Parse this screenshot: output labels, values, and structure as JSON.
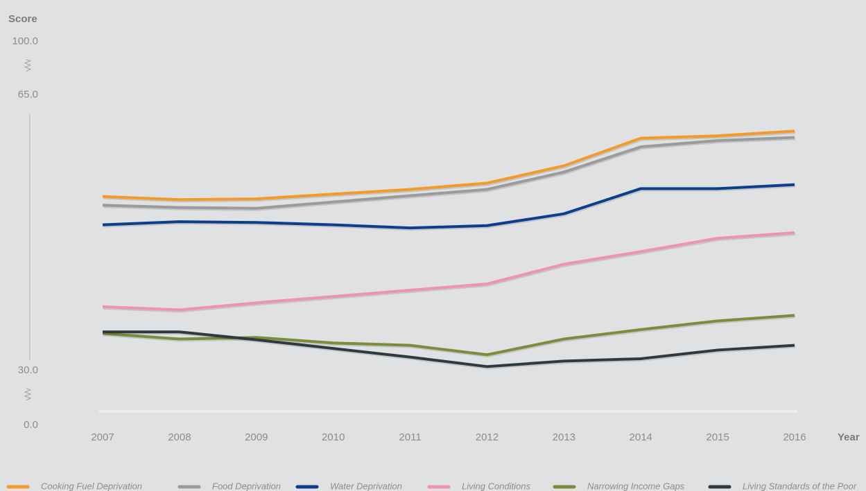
{
  "chart_data": {
    "type": "line",
    "y_label": "Score",
    "x_label": "Year",
    "categories": [
      "2007",
      "2008",
      "2009",
      "2010",
      "2011",
      "2012",
      "2013",
      "2014",
      "2015",
      "2016"
    ],
    "ylim": [
      0,
      100
    ],
    "yticks": [
      {
        "value": 100,
        "label": "100.0"
      },
      {
        "value": 65,
        "label": "65.0"
      },
      {
        "value": 30,
        "label": "30.0"
      },
      {
        "value": 0,
        "label": "0.0"
      }
    ],
    "axis_break": [
      [
        0,
        30
      ],
      [
        65,
        100
      ]
    ],
    "series": [
      {
        "name": "Cooking Fuel Deprivation",
        "color": "#f39a2a",
        "values": [
          52.1,
          51.7,
          51.8,
          52.4,
          53.0,
          53.8,
          56.0,
          59.5,
          59.8,
          60.4
        ]
      },
      {
        "name": "Food Deprivation",
        "color": "#9b9b9b",
        "values": [
          51.0,
          50.7,
          50.6,
          51.4,
          52.2,
          53.0,
          55.2,
          58.4,
          59.2,
          59.6
        ]
      },
      {
        "name": "Water Deprivation",
        "color": "#0b3f8b",
        "values": [
          48.5,
          48.9,
          48.8,
          48.5,
          48.1,
          48.4,
          49.9,
          53.1,
          53.1,
          53.6
        ]
      },
      {
        "name": "Living Conditions",
        "color": "#f093ae",
        "values": [
          38.1,
          37.7,
          38.6,
          39.4,
          40.2,
          41.0,
          43.5,
          45.1,
          46.8,
          47.5
        ]
      },
      {
        "name": "Narrowing Income Gaps",
        "color": "#7d8c3a",
        "values": [
          34.7,
          34.0,
          34.2,
          33.5,
          33.2,
          32.0,
          34.0,
          35.2,
          36.3,
          37.0
        ]
      },
      {
        "name": "Living Standards of the Poor",
        "color": "#2f3a40",
        "values": [
          34.9,
          34.9,
          33.9,
          32.8,
          31.7,
          30.5,
          31.2,
          31.5,
          32.6,
          33.2
        ]
      }
    ]
  }
}
